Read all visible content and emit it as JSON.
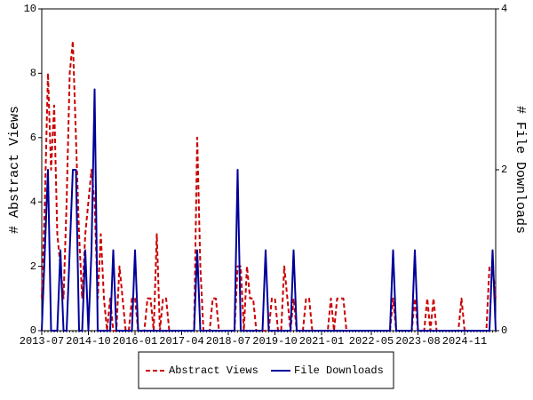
{
  "chart_data": {
    "type": "line",
    "y_label": "# Abstract Views",
    "y2_label": "# File Downloads",
    "categories": [
      "2013-07",
      null,
      null,
      null,
      null,
      null,
      null,
      null,
      null,
      null,
      null,
      null,
      null,
      null,
      null,
      "2014-10",
      null,
      null,
      null,
      null,
      null,
      null,
      null,
      null,
      null,
      null,
      null,
      null,
      null,
      null,
      "2016-01",
      null,
      null,
      null,
      null,
      null,
      null,
      null,
      null,
      null,
      null,
      null,
      null,
      null,
      null,
      "2017-04",
      null,
      null,
      null,
      null,
      null,
      null,
      null,
      null,
      null,
      null,
      null,
      null,
      null,
      null,
      "2018-07",
      null,
      null,
      null,
      null,
      null,
      null,
      null,
      null,
      null,
      null,
      null,
      null,
      null,
      null,
      "2019-10",
      null,
      null,
      null,
      null,
      null,
      null,
      null,
      null,
      null,
      null,
      null,
      null,
      null,
      null,
      "2021-01",
      null,
      null,
      null,
      null,
      null,
      null,
      null,
      null,
      null,
      null,
      null,
      null,
      null,
      null,
      null,
      "2022-05",
      null,
      null,
      null,
      null,
      null,
      null,
      null,
      null,
      null,
      null,
      null,
      null,
      null,
      null,
      "2023-08",
      null,
      null,
      null,
      null,
      null,
      null,
      null,
      null,
      null,
      null,
      null,
      null,
      null,
      null,
      "2024-11",
      null,
      null,
      null,
      null,
      null,
      null,
      null,
      null,
      null,
      null
    ],
    "series": [
      {
        "name": "Abstract Views",
        "color": "#cc0000",
        "dash": true,
        "values": [
          1,
          4,
          8,
          5,
          7,
          3,
          2,
          1,
          4,
          8,
          9,
          6,
          3,
          1,
          3,
          4,
          5,
          4,
          1,
          3,
          1,
          0,
          1,
          0,
          0,
          2,
          1,
          0,
          0,
          1,
          1,
          0,
          0,
          0,
          1,
          1,
          0,
          3,
          0,
          1,
          1,
          0,
          0,
          0,
          0,
          0,
          0,
          0,
          0,
          0,
          6,
          2,
          0,
          0,
          0,
          1,
          1,
          0,
          0,
          0,
          0,
          0,
          0,
          2,
          2,
          0,
          2,
          1,
          1,
          0,
          0,
          0,
          0,
          0,
          1,
          1,
          0,
          0,
          2,
          1,
          0,
          1,
          0,
          0,
          0,
          1,
          1,
          0,
          0,
          0,
          0,
          0,
          0,
          1,
          0,
          1,
          1,
          1,
          0,
          0,
          0,
          0,
          0,
          0,
          0,
          0,
          0,
          0,
          0,
          0,
          0,
          0,
          0,
          1,
          0,
          0,
          0,
          0,
          0,
          0,
          1,
          0,
          0,
          0,
          1,
          0,
          1,
          0,
          0,
          0,
          0,
          0,
          0,
          0,
          0,
          1,
          0,
          0,
          0,
          0,
          0,
          0,
          0,
          0,
          2,
          2,
          1
        ]
      },
      {
        "name": "File Downloads",
        "color": "#000099",
        "dash": false,
        "axis": "y2",
        "values": [
          0,
          1,
          2,
          0,
          0,
          0,
          1,
          0,
          0,
          1,
          2,
          2,
          0,
          0,
          1,
          0,
          1,
          3,
          0,
          0,
          0,
          0,
          0,
          1,
          0,
          0,
          0,
          0,
          0,
          0,
          1,
          0,
          0,
          0,
          0,
          0,
          0,
          0,
          0,
          0,
          0,
          0,
          0,
          0,
          0,
          0,
          0,
          0,
          0,
          0,
          1,
          0,
          0,
          0,
          0,
          0,
          0,
          0,
          0,
          0,
          0,
          0,
          0,
          2,
          0,
          0,
          0,
          0,
          0,
          0,
          0,
          0,
          1,
          0,
          0,
          0,
          0,
          0,
          0,
          0,
          0,
          1,
          0,
          0,
          0,
          0,
          0,
          0,
          0,
          0,
          0,
          0,
          0,
          0,
          0,
          0,
          0,
          0,
          0,
          0,
          0,
          0,
          0,
          0,
          0,
          0,
          0,
          0,
          0,
          0,
          0,
          0,
          0,
          1,
          0,
          0,
          0,
          0,
          0,
          0,
          1,
          0,
          0,
          0,
          0,
          0,
          0,
          0,
          0,
          0,
          0,
          0,
          0,
          0,
          0,
          0,
          0,
          0,
          0,
          0,
          0,
          0,
          0,
          0,
          0,
          1,
          0
        ]
      }
    ],
    "ylim": [
      0,
      10
    ],
    "yticks": [
      0,
      2,
      4,
      6,
      8,
      10
    ],
    "y2lim": [
      0,
      4
    ],
    "y2ticks": [
      0,
      2,
      4
    ],
    "legend": "bottom"
  }
}
